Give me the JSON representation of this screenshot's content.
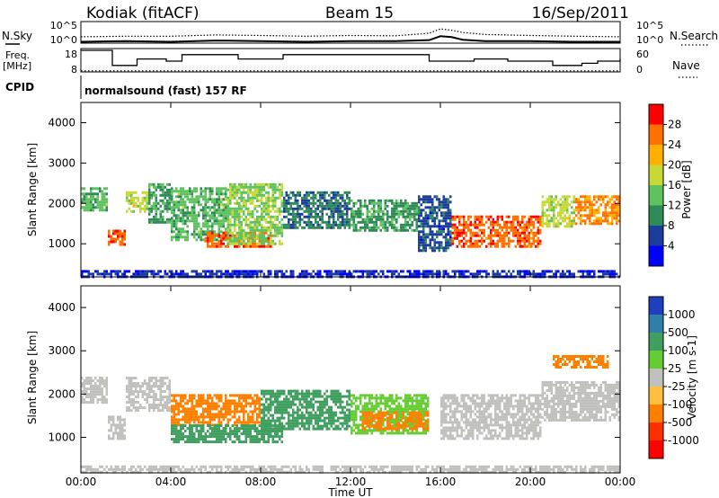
{
  "header": {
    "station": "Kodiak (fitACF)",
    "beam": "Beam 15",
    "date": "16/Sep/2011"
  },
  "noise_panel": {
    "left_label": "N.Sky",
    "right_label": "N.Search",
    "ticks": [
      "10^5",
      "10^0"
    ],
    "right_ticks": [
      "10^5",
      "10^0"
    ]
  },
  "freq_panel": {
    "left_label_1": "Freq.",
    "left_label_2": "[MHz]",
    "left_ticks": [
      "18",
      "8"
    ],
    "right_label": "Nave",
    "right_ticks": [
      "60",
      "0"
    ]
  },
  "cpid": {
    "label": "CPID",
    "text": "normalsound (fast) 157 RF"
  },
  "x_axis": {
    "label": "Time UT",
    "ticks": [
      "00:00",
      "04:00",
      "08:00",
      "12:00",
      "16:00",
      "20:00",
      "00:00"
    ]
  },
  "power_panel": {
    "ylabel": "Slant Range [km]",
    "yticks": [
      "1000",
      "2000",
      "3000",
      "4000"
    ],
    "colorbar_label": "Power [dB]",
    "colorbar_ticks": [
      "4",
      "8",
      "12",
      "16",
      "20",
      "24",
      "28"
    ],
    "colors": [
      "#0000ff",
      "#1c3d9e",
      "#2e8a57",
      "#5ec25e",
      "#c8d836",
      "#ffb000",
      "#ff7000",
      "#ff0000"
    ]
  },
  "velocity_panel": {
    "ylabel": "Slant Range [km]",
    "yticks": [
      "1000",
      "2000",
      "3000",
      "4000"
    ],
    "colorbar_label": "Velocity [m s-1]",
    "colorbar_ticks": [
      "1000",
      "500",
      "100",
      "25",
      "-25",
      "-100",
      "-500",
      "-1000"
    ],
    "colors": [
      "#1f3fbf",
      "#2f7fa8",
      "#3f9f5f",
      "#66cc33",
      "#c0c0bd",
      "#ffbf3f",
      "#ff8000",
      "#ff3000",
      "#ff0000"
    ]
  },
  "chart_data": [
    {
      "type": "line",
      "title": "",
      "series": [
        {
          "name": "N.Sky",
          "x_hours": [
            0,
            2,
            4,
            6,
            8,
            10,
            12,
            14,
            15.5,
            16,
            16.5,
            17,
            18,
            20,
            22,
            24
          ],
          "values": [
            2,
            3,
            2,
            4,
            3,
            2,
            3,
            3,
            5,
            40,
            25,
            6,
            3,
            3,
            2,
            2
          ]
        },
        {
          "name": "N.Search",
          "x_hours": [
            0,
            2,
            4,
            6,
            8,
            10,
            12,
            14,
            15.5,
            16,
            16.5,
            17,
            18,
            20,
            22,
            24
          ],
          "values": [
            30,
            40,
            40,
            80,
            60,
            40,
            60,
            50,
            200,
            2000,
            1000,
            300,
            100,
            60,
            40,
            30
          ]
        }
      ],
      "ylim": [
        1,
        100000
      ],
      "log_scale": true
    },
    {
      "type": "line",
      "title": "",
      "series": [
        {
          "name": "Freq.",
          "x_hours": [
            0,
            1.4,
            2.5,
            3.8,
            4.5,
            7,
            9,
            14,
            15.5,
            17.5,
            19,
            21,
            22.3,
            23,
            24
          ],
          "values": [
            18,
            11,
            14,
            13,
            16,
            14,
            16,
            16,
            13,
            14,
            13,
            11,
            12,
            13,
            14
          ]
        },
        {
          "name": "Nave",
          "x_hours": [
            0,
            24
          ],
          "values": [
            3,
            3
          ]
        }
      ],
      "ylim": [
        8,
        18
      ],
      "y2lim": [
        0,
        60
      ]
    },
    {
      "type": "heatmap",
      "title": "",
      "xlabel": "Time UT",
      "ylabel": "Slant Range [km]",
      "quantity": "Power [dB]",
      "xlim_hours": [
        0,
        24
      ],
      "ylim": [
        180,
        4500
      ],
      "colorbar": [
        4,
        8,
        12,
        16,
        20,
        24,
        28
      ],
      "regions": [
        {
          "t0": 0.0,
          "t1": 1.2,
          "r0": 1800,
          "r1": 2400,
          "value": 16
        },
        {
          "t0": 1.2,
          "t1": 2.0,
          "r0": 950,
          "r1": 1350,
          "value": 28
        },
        {
          "t0": 2.0,
          "t1": 3.0,
          "r0": 1800,
          "r1": 2300,
          "value": 20
        },
        {
          "t0": 3.0,
          "t1": 4.0,
          "r0": 1500,
          "r1": 2500,
          "value": 14
        },
        {
          "t0": 4.0,
          "t1": 6.5,
          "r0": 1100,
          "r1": 2400,
          "value": 16
        },
        {
          "t0": 5.5,
          "t1": 8.5,
          "r0": 900,
          "r1": 1300,
          "value": 28
        },
        {
          "t0": 6.5,
          "t1": 9.0,
          "r0": 1000,
          "r1": 2500,
          "value": 18
        },
        {
          "t0": 9.0,
          "t1": 12.0,
          "r0": 1400,
          "r1": 2300,
          "value": 12
        },
        {
          "t0": 12.0,
          "t1": 15.0,
          "r0": 1300,
          "r1": 2100,
          "value": 14
        },
        {
          "t0": 15.0,
          "t1": 16.5,
          "r0": 800,
          "r1": 2200,
          "value": 10
        },
        {
          "t0": 16.5,
          "t1": 20.5,
          "r0": 950,
          "r1": 1700,
          "value": 28
        },
        {
          "t0": 20.5,
          "t1": 22.0,
          "r0": 1400,
          "r1": 2200,
          "value": 20
        },
        {
          "t0": 22.0,
          "t1": 24.0,
          "r0": 1500,
          "r1": 2200,
          "value": 26
        },
        {
          "t0": 0.0,
          "t1": 24.0,
          "r0": 200,
          "r1": 350,
          "value": 8
        }
      ]
    },
    {
      "type": "heatmap",
      "title": "",
      "xlabel": "Time UT",
      "ylabel": "Slant Range [km]",
      "quantity": "Velocity [m s-1]",
      "xlim_hours": [
        0,
        24
      ],
      "ylim": [
        180,
        4500
      ],
      "colorbar": [
        1000,
        500,
        100,
        25,
        -25,
        -100,
        -500,
        -1000
      ],
      "regions": [
        {
          "t0": 0.0,
          "t1": 1.2,
          "r0": 1800,
          "r1": 2400,
          "value": 0
        },
        {
          "t0": 1.2,
          "t1": 2.0,
          "r0": 1000,
          "r1": 1500,
          "value": 0
        },
        {
          "t0": 2.0,
          "t1": 4.0,
          "r0": 1600,
          "r1": 2400,
          "value": 0
        },
        {
          "t0": 4.0,
          "t1": 8.0,
          "r0": 1300,
          "r1": 2000,
          "value": -200
        },
        {
          "t0": 4.0,
          "t1": 9.0,
          "r0": 900,
          "r1": 1300,
          "value": 100
        },
        {
          "t0": 8.0,
          "t1": 12.0,
          "r0": 1200,
          "r1": 2100,
          "value": 150
        },
        {
          "t0": 12.0,
          "t1": 15.5,
          "r0": 1100,
          "r1": 2000,
          "value": 60
        },
        {
          "t0": 12.5,
          "t1": 15.5,
          "r0": 1200,
          "r1": 1600,
          "value": -200
        },
        {
          "t0": 16.0,
          "t1": 20.5,
          "r0": 1000,
          "r1": 2000,
          "value": 0
        },
        {
          "t0": 20.5,
          "t1": 24.0,
          "r0": 1400,
          "r1": 2300,
          "value": 0
        },
        {
          "t0": 21.0,
          "t1": 23.5,
          "r0": 2600,
          "r1": 2900,
          "value": -300
        },
        {
          "t0": 0.0,
          "t1": 24.0,
          "r0": 200,
          "r1": 350,
          "value": 0
        }
      ]
    }
  ]
}
